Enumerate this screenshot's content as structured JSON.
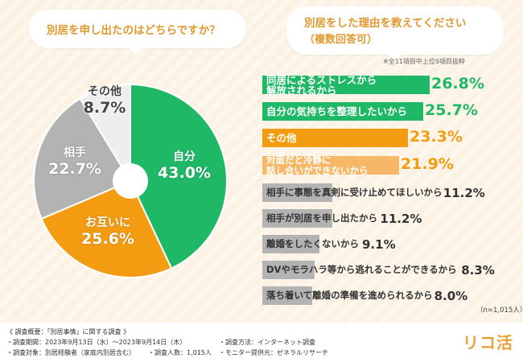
{
  "chart_data": [
    {
      "type": "pie",
      "title": "別居を申し出たのはどちらですか？",
      "slices": [
        {
          "label": "自分",
          "value": 43.0,
          "value_text": "43.0%",
          "color": "#1fb866"
        },
        {
          "label": "お互いに",
          "value": 25.6,
          "value_text": "25.6%",
          "color": "#f39c12"
        },
        {
          "label": "相手",
          "value": 22.7,
          "value_text": "22.7%",
          "color": "#b3b3b3"
        },
        {
          "label": "その他",
          "value": 8.7,
          "value_text": "8.7%",
          "color": "#eeeeee"
        }
      ]
    },
    {
      "type": "bar",
      "orientation": "horizontal",
      "title_line1": "別居をした理由を教えてください",
      "title_line2": "（複数回答可）",
      "note": "※全11項目中上位9項目抜粋",
      "n_note": "（n=1,015人）",
      "xlim": [
        0,
        30
      ],
      "categories": [
        "同居によるストレスから解放されるから",
        "自分の気持ちを整理したいから",
        "その他",
        "対面だと冷静に話し合いができないから",
        "相手に事態を真剣に受け止めてほしいから",
        "相手が別居を申し出たから",
        "離婚をしたくないから",
        "DVやモラハラ等から逃れることができるから",
        "落ち着いて離婚の準備を進められるから"
      ],
      "values": [
        26.8,
        25.7,
        23.3,
        21.9,
        11.2,
        11.2,
        9.1,
        8.3,
        8.0
      ],
      "labels_lines": [
        [
          "同居によるストレスから",
          "解放されるから"
        ],
        [
          "自分の気持ちを整理したいから"
        ],
        [
          "その他"
        ],
        [
          "対面だと冷静に",
          "話し合いができないから"
        ],
        [
          "相手に事態を真剣に受け止めてほしいから"
        ],
        [
          "相手が別居を申し出たから"
        ],
        [
          "離婚をしたくないから"
        ],
        [
          "DVやモラハラ等から逃れることができるから"
        ],
        [
          "落ち着いて離婚の準備を進められるから"
        ]
      ],
      "value_texts": [
        "26.8%",
        "25.7%",
        "23.3%",
        "21.9%",
        "11.2%",
        "11.2%",
        "9.1%",
        "8.3%",
        "8.0%"
      ],
      "colors": [
        "#1fb866",
        "#1fb866",
        "#f39c12",
        "#f6b866",
        "#b3b3b3",
        "#b3b3b3",
        "#b3b3b3",
        "#b3b3b3",
        "#b3b3b3"
      ],
      "text_colors": [
        "#1fb866",
        "#1fb866",
        "#f39c12",
        "#f39c12",
        "#333333",
        "#333333",
        "#333333",
        "#333333",
        "#333333"
      ]
    }
  ],
  "footer": {
    "overview": "《 調査概要：「別居事情」に関する調査 》",
    "period": "・調査期間：2023年9月13日（水）〜2023年9月14日（木）",
    "method": "・調査方法：インターネット調査",
    "target": "・調査対象：別居経験者（家庭内別居含む）",
    "count": "・調査人数：1,015人",
    "provider": "・モニター提供元：ゼネラルリサーチ"
  },
  "logo": "リコ活",
  "colors": {
    "background": "#fbf2e3",
    "accent": "#e09a2f",
    "green": "#1fb866",
    "orange": "#f39c12",
    "gray": "#b3b3b3"
  }
}
